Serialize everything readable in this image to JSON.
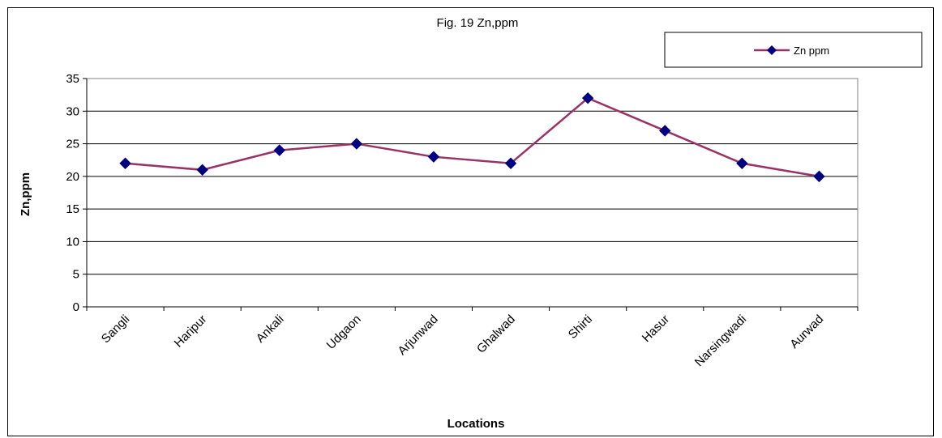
{
  "chart_data": {
    "type": "line",
    "title": "Fig. 19 Zn,ppm",
    "xlabel": "Locations",
    "ylabel": "Zn,ppm",
    "categories": [
      "Sangli",
      "Haripur",
      "Ankali",
      "Udgaon",
      "Arjunwad",
      "Ghalwad",
      "Shirti",
      "Hasur",
      "Narsingwadi",
      "Aurwad"
    ],
    "series": [
      {
        "name": "Zn ppm",
        "values": [
          22,
          21,
          24,
          25,
          23,
          22,
          32,
          27,
          22,
          20
        ]
      }
    ],
    "ylim": [
      0,
      35
    ],
    "yticks": [
      "0",
      "5",
      "10",
      "15",
      "20",
      "25",
      "30",
      "35"
    ],
    "grid": true,
    "legend_position": "top-right",
    "colors": {
      "line": "#993366",
      "marker": "#000080"
    }
  }
}
